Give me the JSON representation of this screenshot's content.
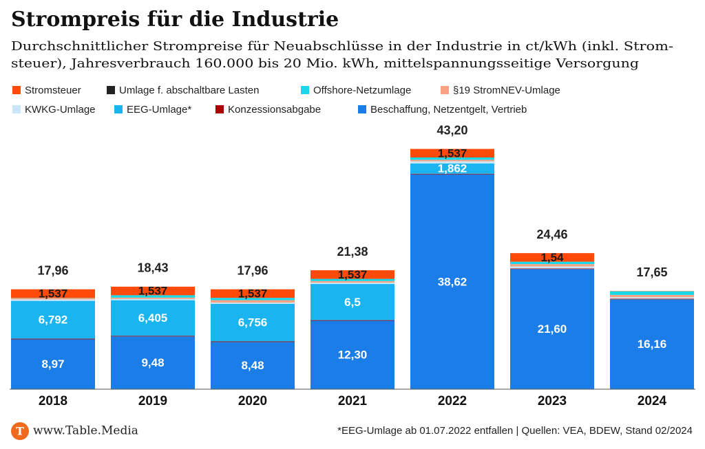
{
  "chart_data": {
    "type": "stacked_bar",
    "title": "Strompreis für die Industrie",
    "subtitle": [
      "Durchschnittlicher Strompreise für Neuabschlüsse in der Industrie in ct/kWh (inkl. Strom-",
      "steuer), Jahresverbrauch 160.000 bis 20 Mio. kWh, mittelspannungsseitige Versorgung"
    ],
    "categories": [
      "2018",
      "2019",
      "2020",
      "2021",
      "2022",
      "2023",
      "2024"
    ],
    "series": [
      {
        "name": "Stromsteuer",
        "color": "#ff4a0a",
        "values": [
          1.537,
          1.537,
          1.537,
          1.537,
          1.537,
          1.54,
          0.05
        ],
        "value_labels": [
          "1,537",
          "1,537",
          "1,537",
          "1,537",
          "1,537",
          "1,54",
          null
        ]
      },
      {
        "name": "Umlage f. abschaltbare Lasten",
        "color": "#222222",
        "values": [
          0.004,
          0.006,
          0.007,
          0.009,
          0.003,
          0,
          0
        ]
      },
      {
        "name": "Offshore-Netzumlage",
        "color": "#1ad8ea",
        "values": [
          0.037,
          0.416,
          0.416,
          0.395,
          0.419,
          0.436,
          0.652
        ]
      },
      {
        "name": "§19 StromNEV-Umlage",
        "color": "#f7a282",
        "values": [
          0.23,
          0.25,
          0.428,
          0.275,
          0.271,
          0.417,
          0.403
        ]
      },
      {
        "name": "KWKG-Umlage",
        "color": "#c9e6fa",
        "values": [
          0.28,
          0.226,
          0.226,
          0.254,
          0.378,
          0.357,
          0.275
        ]
      },
      {
        "name": "EEG-Umlage*",
        "color": "#1ab4f0",
        "values": [
          6.792,
          6.405,
          6.756,
          6.5,
          1.862,
          0,
          0
        ],
        "value_labels": [
          "6,792",
          "6,405",
          "6,756",
          "6,5",
          "1,862",
          null,
          null
        ]
      },
      {
        "name": "Konzessionsabgabe",
        "color": "#a80000",
        "values": [
          0.11,
          0.11,
          0.11,
          0.11,
          0.11,
          0.11,
          0.11
        ]
      },
      {
        "name": "Beschaffung, Netzentgelt, Vertrieb",
        "color": "#1a7de8",
        "values": [
          8.97,
          9.48,
          8.48,
          12.3,
          38.62,
          21.6,
          16.16
        ],
        "value_labels": [
          "8,97",
          "9,48",
          "8,48",
          "12,30",
          "38,62",
          "21,60",
          "16,16"
        ]
      }
    ],
    "totals": [
      17.96,
      18.43,
      17.96,
      21.38,
      43.2,
      24.46,
      17.65
    ],
    "total_labels": [
      "17,96",
      "18,43",
      "17,96",
      "21,38",
      "43,20",
      "24,46",
      "17,65"
    ],
    "ylim": [
      0,
      45
    ],
    "source": "www.Table.Media",
    "footnote": "*EEG-Umlage ab 01.07.2022 entfallen | Quellen: VEA, BDEW, Stand 02/2024"
  }
}
